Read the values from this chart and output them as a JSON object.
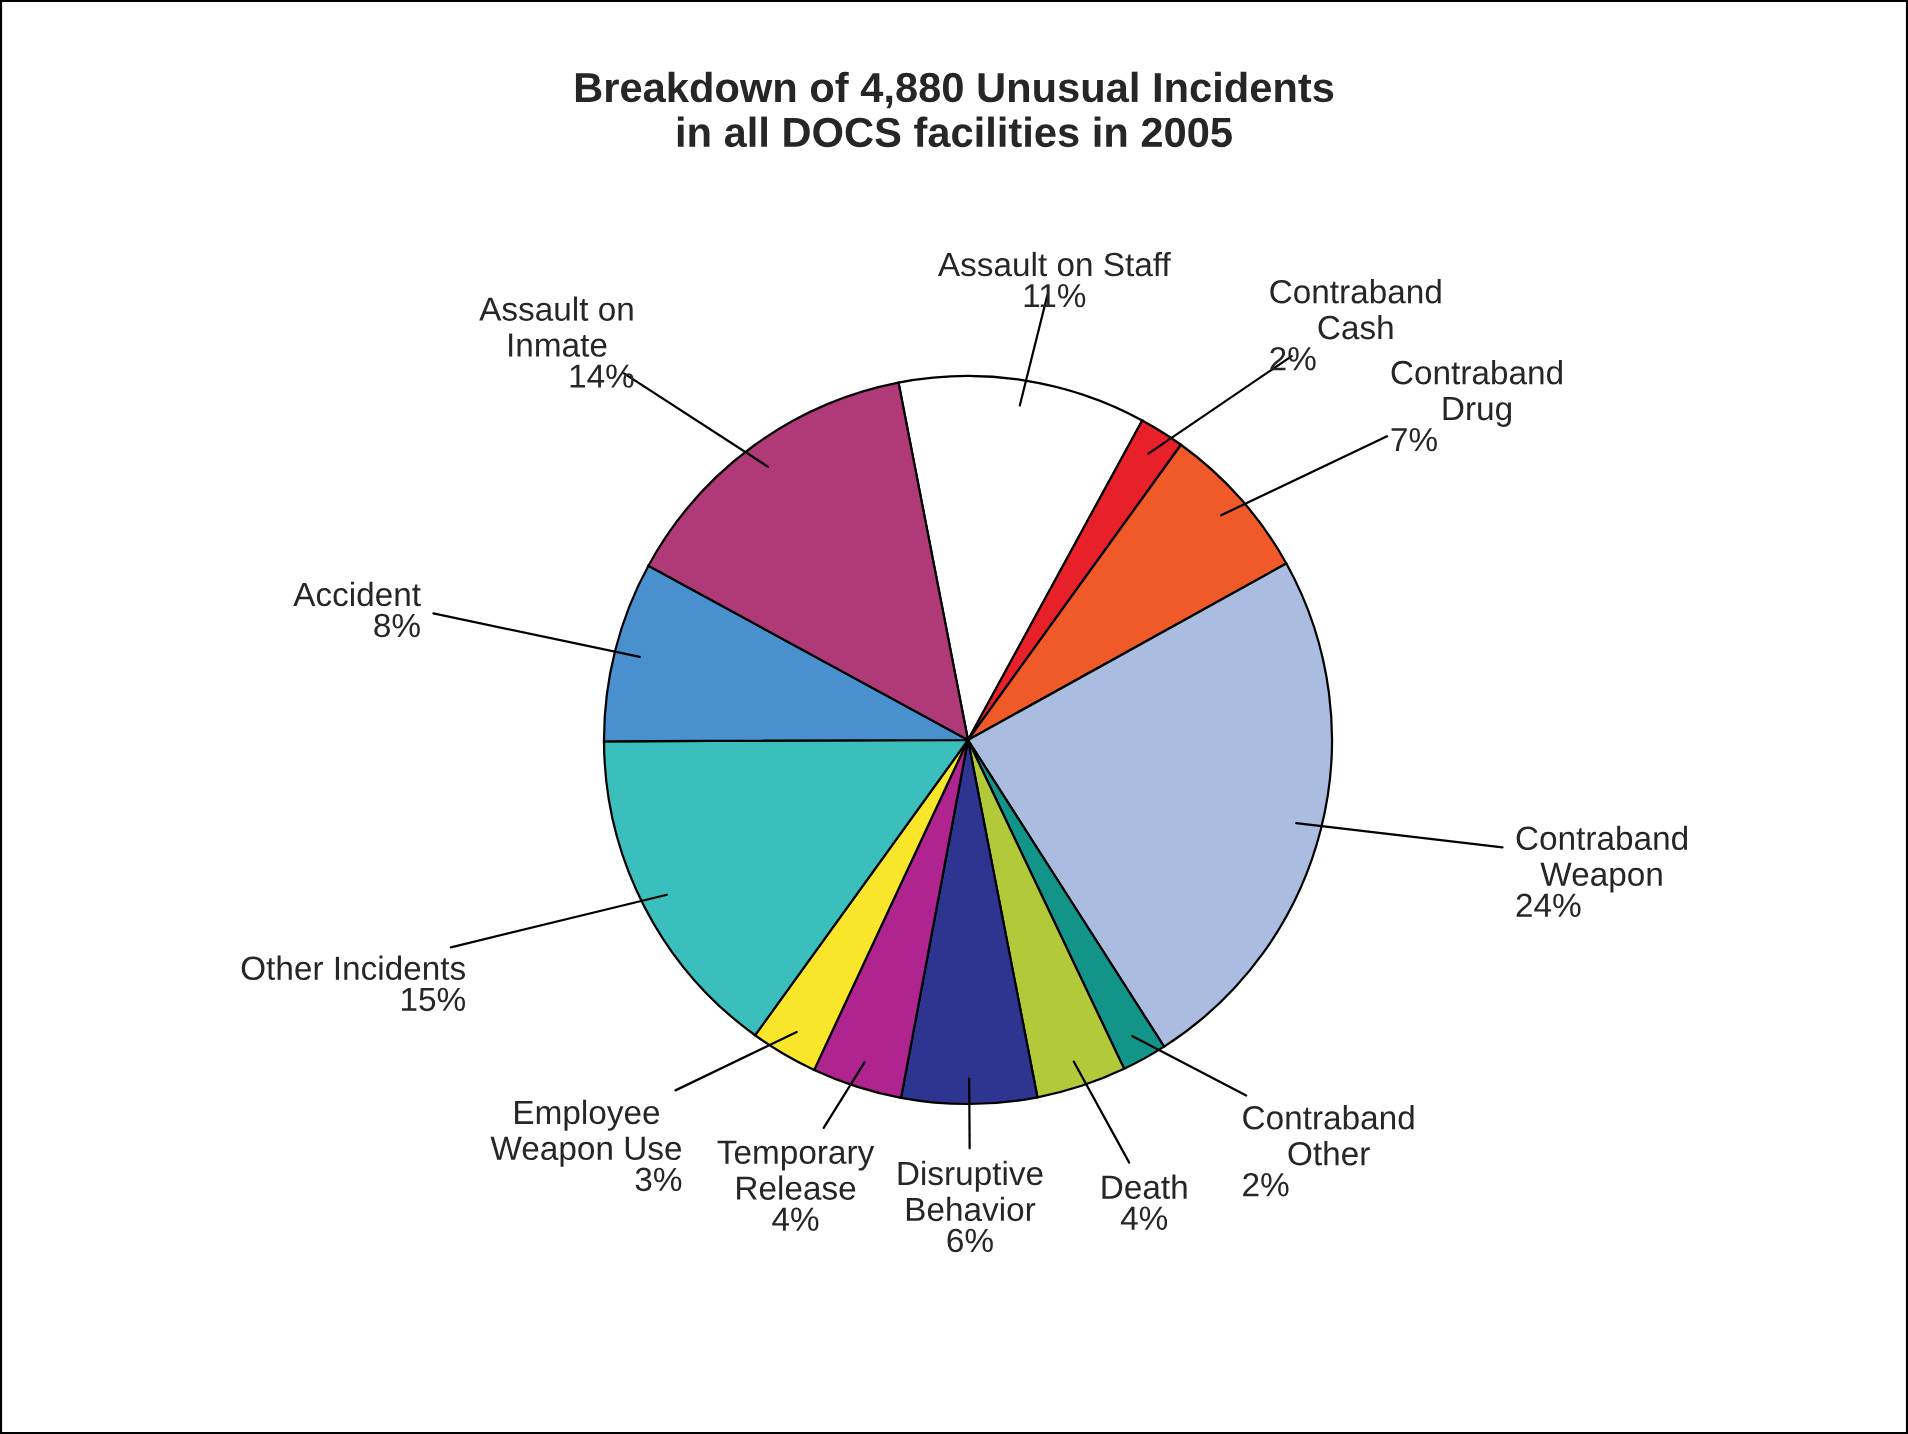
{
  "chart_data": {
    "type": "pie",
    "title": "Breakdown of 4,880 Unusual Incidents\nin all DOCS facilities in 2005",
    "categories": [
      "Assault on Staff",
      "Contraband\nCash",
      "Contraband\nDrug",
      "Contraband\nWeapon",
      "Contraband\nOther",
      "Death",
      "Disruptive\nBehavior",
      "Temporary\nRelease",
      "Employee\nWeapon Use",
      "Other Incidents",
      "Accident",
      "Assault on\nInmate"
    ],
    "values": [
      11,
      2,
      7,
      24,
      2,
      4,
      6,
      4,
      3,
      15,
      8,
      14
    ],
    "colors": [
      "#ffffff",
      "#e8202a",
      "#f05a28",
      "#aabde0",
      "#139488",
      "#b2c93a",
      "#2e3591",
      "#b0248f",
      "#f9e62a",
      "#3bbfbd",
      "#4a90cf",
      "#b03a78"
    ],
    "value_labels": [
      "11%",
      "2%",
      "7%",
      "24%",
      "2%",
      "4%",
      "6%",
      "4%",
      "3%",
      "15%",
      "8%",
      "14%"
    ],
    "legend": false
  }
}
